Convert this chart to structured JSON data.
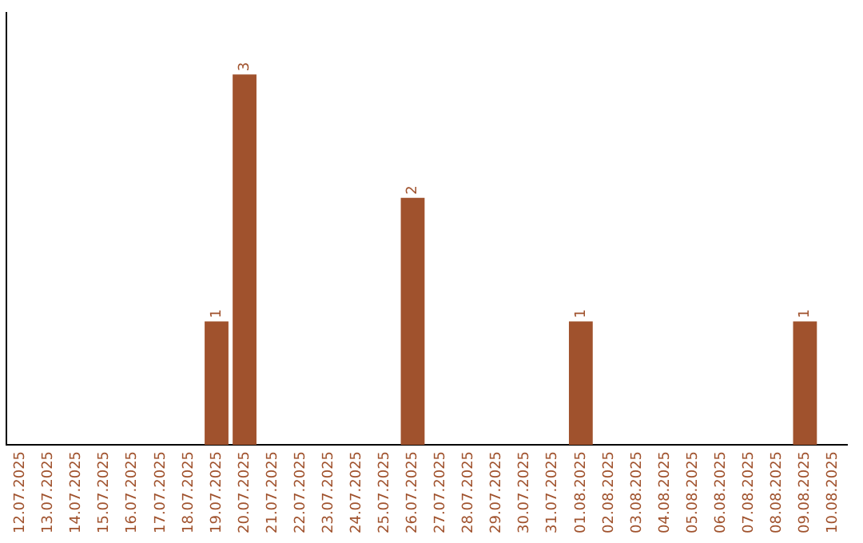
{
  "chart_data": {
    "type": "bar",
    "categories": [
      "12.07.2025",
      "13.07.2025",
      "14.07.2025",
      "15.07.2025",
      "16.07.2025",
      "17.07.2025",
      "18.07.2025",
      "19.07.2025",
      "20.07.2025",
      "21.07.2025",
      "22.07.2025",
      "23.07.2025",
      "24.07.2025",
      "25.07.2025",
      "26.07.2025",
      "27.07.2025",
      "28.07.2025",
      "29.07.2025",
      "30.07.2025",
      "31.07.2025",
      "01.08.2025",
      "02.08.2025",
      "03.08.2025",
      "04.08.2025",
      "05.08.2025",
      "06.08.2025",
      "07.08.2025",
      "08.08.2025",
      "09.08.2025",
      "10.08.2025"
    ],
    "values": [
      0,
      0,
      0,
      0,
      0,
      0,
      0,
      1,
      3,
      0,
      0,
      0,
      0,
      0,
      2,
      0,
      0,
      0,
      0,
      0,
      1,
      0,
      0,
      0,
      0,
      0,
      0,
      0,
      1,
      0
    ],
    "value_labels": [
      null,
      null,
      null,
      null,
      null,
      null,
      null,
      "1",
      "3",
      null,
      null,
      null,
      null,
      null,
      "2",
      null,
      null,
      null,
      null,
      null,
      "1",
      null,
      null,
      null,
      null,
      null,
      null,
      null,
      "1",
      null
    ],
    "color": "#a0522d",
    "tick_labels": "x",
    "grid": false,
    "legend": false
  }
}
